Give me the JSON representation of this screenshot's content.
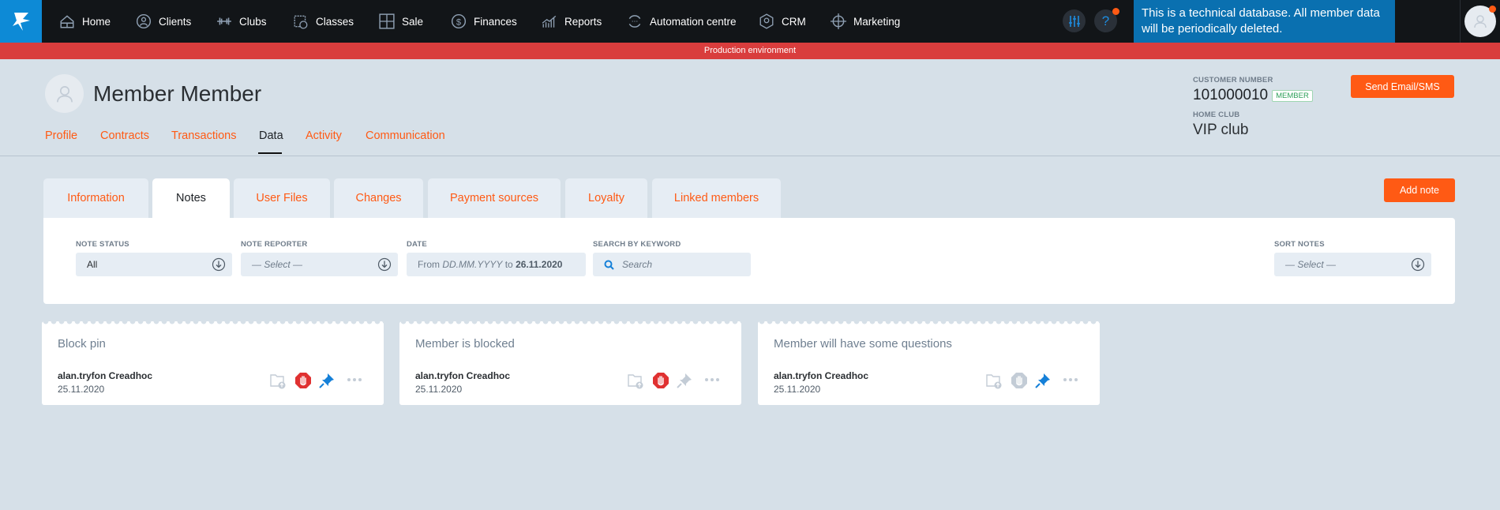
{
  "nav": {
    "items": [
      {
        "label": "Home",
        "icon": "home-icon"
      },
      {
        "label": "Clients",
        "icon": "clients-icon"
      },
      {
        "label": "Clubs",
        "icon": "dumbbell-icon"
      },
      {
        "label": "Classes",
        "icon": "calendar-clock-icon"
      },
      {
        "label": "Sale",
        "icon": "calculator-icon"
      },
      {
        "label": "Finances",
        "icon": "dollar-icon"
      },
      {
        "label": "Reports",
        "icon": "chart-icon"
      },
      {
        "label": "Automation centre",
        "icon": "refresh-icon"
      },
      {
        "label": "CRM",
        "icon": "crm-icon"
      },
      {
        "label": "Marketing",
        "icon": "target-icon"
      }
    ],
    "help": "?",
    "banner": "This is a technical database. All member data will be periodically deleted."
  },
  "environment": "Production environment",
  "member": {
    "name": "Member Member",
    "customer_number_label": "CUSTOMER NUMBER",
    "customer_number": "101000010",
    "badge": "MEMBER",
    "home_club_label": "HOME CLUB",
    "home_club": "VIP club",
    "send_button": "Send Email/SMS"
  },
  "subtabs": [
    "Profile",
    "Contracts",
    "Transactions",
    "Data",
    "Activity",
    "Communication"
  ],
  "active_subtab": "Data",
  "tabs": [
    "Information",
    "Notes",
    "User Files",
    "Changes",
    "Payment sources",
    "Loyalty",
    "Linked members"
  ],
  "active_tab": "Notes",
  "add_note": "Add note",
  "filters": {
    "status": {
      "label": "NOTE STATUS",
      "value": "All"
    },
    "reporter": {
      "label": "NOTE REPORTER",
      "placeholder": "— Select —"
    },
    "date": {
      "label": "DATE",
      "from": "From",
      "from_placeholder": "DD.MM.YYYY",
      "to": "to",
      "to_value": "26.11.2020"
    },
    "search": {
      "label": "SEARCH BY KEYWORD",
      "placeholder": "Search"
    },
    "sort": {
      "label": "SORT NOTES",
      "placeholder": "— Select —"
    }
  },
  "notes": [
    {
      "title": "Block pin",
      "author": "alan.tryfon Creadhoc",
      "date": "25.11.2020",
      "blocked": true,
      "pinned": true
    },
    {
      "title": "Member is blocked",
      "author": "alan.tryfon Creadhoc",
      "date": "25.11.2020",
      "blocked": true,
      "pinned": false
    },
    {
      "title": "Member will have some questions",
      "author": "alan.tryfon Creadhoc",
      "date": "25.11.2020",
      "blocked": false,
      "pinned": true
    }
  ],
  "colors": {
    "accent": "#ff5a14",
    "nav": "#121518",
    "env_bar": "#d93d3d",
    "banner": "#0a70b0",
    "pin_active": "#1580d8",
    "block_active": "#e03131",
    "inactive": "#c3ccd6"
  }
}
